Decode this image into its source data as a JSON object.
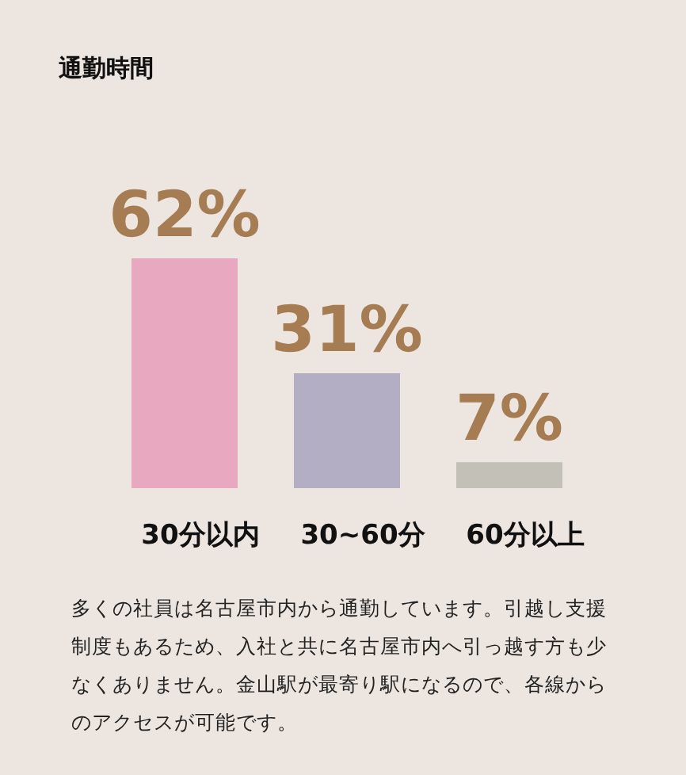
{
  "chart_data": {
    "type": "bar",
    "title": "通勤時間",
    "categories": [
      "30分以内",
      "30~60分",
      "60分以上"
    ],
    "values": [
      62,
      31,
      7
    ],
    "colors": [
      "#e8a8bf",
      "#b3aec3",
      "#c3c0b8"
    ],
    "value_labels": [
      "62%",
      "31%",
      "7%"
    ],
    "annotations": [
      "多くの社員は名古屋市内から通勤しています。引越し支援制度もあるため、入社と共に名古屋市内へ引っ越す方も少なくありません。金山駅が最寄り駅になるので、各線からのアクセスが可能です。"
    ]
  }
}
